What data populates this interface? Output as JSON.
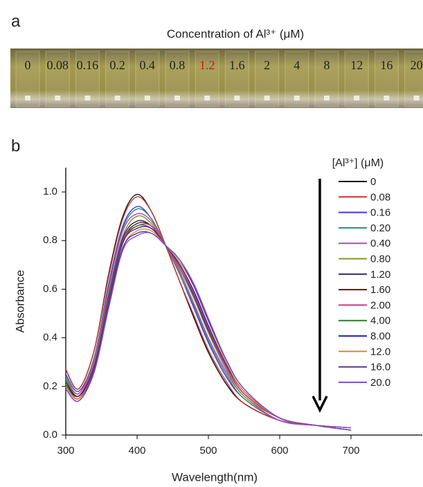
{
  "chart_data": {
    "type": "line",
    "panel_a_label": "a",
    "panel_b_label": "b",
    "photo_title": "Concentration of Al³⁺ (μM)",
    "photo_labels": [
      "0",
      "0.08",
      "0.16",
      "0.2",
      "0.4",
      "0.8",
      "1.2",
      "1.6",
      "2",
      "4",
      "8",
      "12",
      "16",
      "20"
    ],
    "photo_label_colors": [
      "#222",
      "#222",
      "#222",
      "#222",
      "#222",
      "#222",
      "#e01010",
      "#222",
      "#222",
      "#222",
      "#222",
      "#222",
      "#222",
      "#222"
    ],
    "x_label": "Wavelength(nm)",
    "y_label": "Absorbance",
    "legend_title": "[Al³⁺] (μM)",
    "x": [
      300,
      318,
      340,
      360,
      380,
      400,
      420,
      440,
      460,
      480,
      500,
      525,
      550,
      600,
      650,
      700
    ],
    "xlim": [
      300,
      800
    ],
    "xticks": [
      300,
      400,
      500,
      600,
      700
    ],
    "ylim": [
      0,
      1.1
    ],
    "yticks": [
      {
        "value": 0,
        "label": "0.0"
      },
      {
        "value": 0.2,
        "label": "0.2"
      },
      {
        "value": 0.4,
        "label": "0.4"
      },
      {
        "value": 0.6,
        "label": "0.6"
      },
      {
        "value": 0.8,
        "label": "0.8"
      },
      {
        "value": 1,
        "label": "1.0"
      }
    ],
    "grid": false,
    "series": [
      {
        "name": "0",
        "color": "#111111",
        "values": [
          0.27,
          0.19,
          0.35,
          0.66,
          0.9,
          0.99,
          0.92,
          0.78,
          0.63,
          0.48,
          0.34,
          0.21,
          0.13,
          0.06,
          0.04,
          0.03
        ]
      },
      {
        "name": "0.08",
        "color": "#d03030",
        "values": [
          0.27,
          0.19,
          0.35,
          0.65,
          0.89,
          0.98,
          0.92,
          0.78,
          0.63,
          0.49,
          0.35,
          0.22,
          0.13,
          0.06,
          0.04,
          0.03
        ]
      },
      {
        "name": "0.16",
        "color": "#3a3ad0",
        "values": [
          0.25,
          0.18,
          0.32,
          0.62,
          0.86,
          0.94,
          0.89,
          0.78,
          0.66,
          0.52,
          0.38,
          0.24,
          0.15,
          0.06,
          0.04,
          0.03
        ]
      },
      {
        "name": "0.20",
        "color": "#2a8a8a",
        "values": [
          0.24,
          0.17,
          0.32,
          0.61,
          0.85,
          0.93,
          0.89,
          0.78,
          0.66,
          0.53,
          0.39,
          0.25,
          0.15,
          0.06,
          0.04,
          0.03
        ]
      },
      {
        "name": "0.40",
        "color": "#c040c0",
        "values": [
          0.23,
          0.17,
          0.31,
          0.6,
          0.84,
          0.91,
          0.88,
          0.78,
          0.67,
          0.54,
          0.4,
          0.26,
          0.16,
          0.06,
          0.04,
          0.03
        ]
      },
      {
        "name": "0.80",
        "color": "#7a9a20",
        "values": [
          0.23,
          0.16,
          0.3,
          0.58,
          0.82,
          0.9,
          0.87,
          0.78,
          0.68,
          0.56,
          0.42,
          0.27,
          0.16,
          0.07,
          0.04,
          0.02
        ]
      },
      {
        "name": "1.20",
        "color": "#2a2a6a",
        "values": [
          0.22,
          0.16,
          0.29,
          0.57,
          0.81,
          0.88,
          0.86,
          0.78,
          0.69,
          0.57,
          0.43,
          0.28,
          0.17,
          0.07,
          0.04,
          0.02
        ]
      },
      {
        "name": "1.60",
        "color": "#6a1010",
        "values": [
          0.21,
          0.16,
          0.29,
          0.56,
          0.8,
          0.87,
          0.86,
          0.78,
          0.69,
          0.58,
          0.44,
          0.28,
          0.17,
          0.07,
          0.04,
          0.02
        ]
      },
      {
        "name": "2.00",
        "color": "#e0307a",
        "values": [
          0.21,
          0.15,
          0.29,
          0.56,
          0.8,
          0.86,
          0.86,
          0.78,
          0.69,
          0.58,
          0.44,
          0.28,
          0.17,
          0.07,
          0.04,
          0.02
        ]
      },
      {
        "name": "4.00",
        "color": "#2a7a2a",
        "values": [
          0.21,
          0.15,
          0.28,
          0.55,
          0.79,
          0.86,
          0.85,
          0.78,
          0.7,
          0.59,
          0.45,
          0.29,
          0.18,
          0.07,
          0.04,
          0.02
        ]
      },
      {
        "name": "8.00",
        "color": "#2a2ab0",
        "values": [
          0.2,
          0.15,
          0.28,
          0.54,
          0.79,
          0.85,
          0.85,
          0.78,
          0.7,
          0.59,
          0.45,
          0.29,
          0.18,
          0.07,
          0.04,
          0.02
        ]
      },
      {
        "name": "12.0",
        "color": "#e08a20",
        "values": [
          0.2,
          0.15,
          0.27,
          0.53,
          0.77,
          0.84,
          0.84,
          0.78,
          0.71,
          0.61,
          0.47,
          0.3,
          0.18,
          0.07,
          0.04,
          0.02
        ]
      },
      {
        "name": "16.0",
        "color": "#6a2a8a",
        "values": [
          0.19,
          0.14,
          0.27,
          0.53,
          0.77,
          0.83,
          0.83,
          0.78,
          0.72,
          0.61,
          0.47,
          0.31,
          0.19,
          0.07,
          0.04,
          0.02
        ]
      },
      {
        "name": "20.0",
        "color": "#7a50d0",
        "values": [
          0.19,
          0.14,
          0.26,
          0.52,
          0.76,
          0.82,
          0.83,
          0.78,
          0.72,
          0.62,
          0.48,
          0.31,
          0.19,
          0.07,
          0.04,
          0.02
        ]
      }
    ]
  }
}
